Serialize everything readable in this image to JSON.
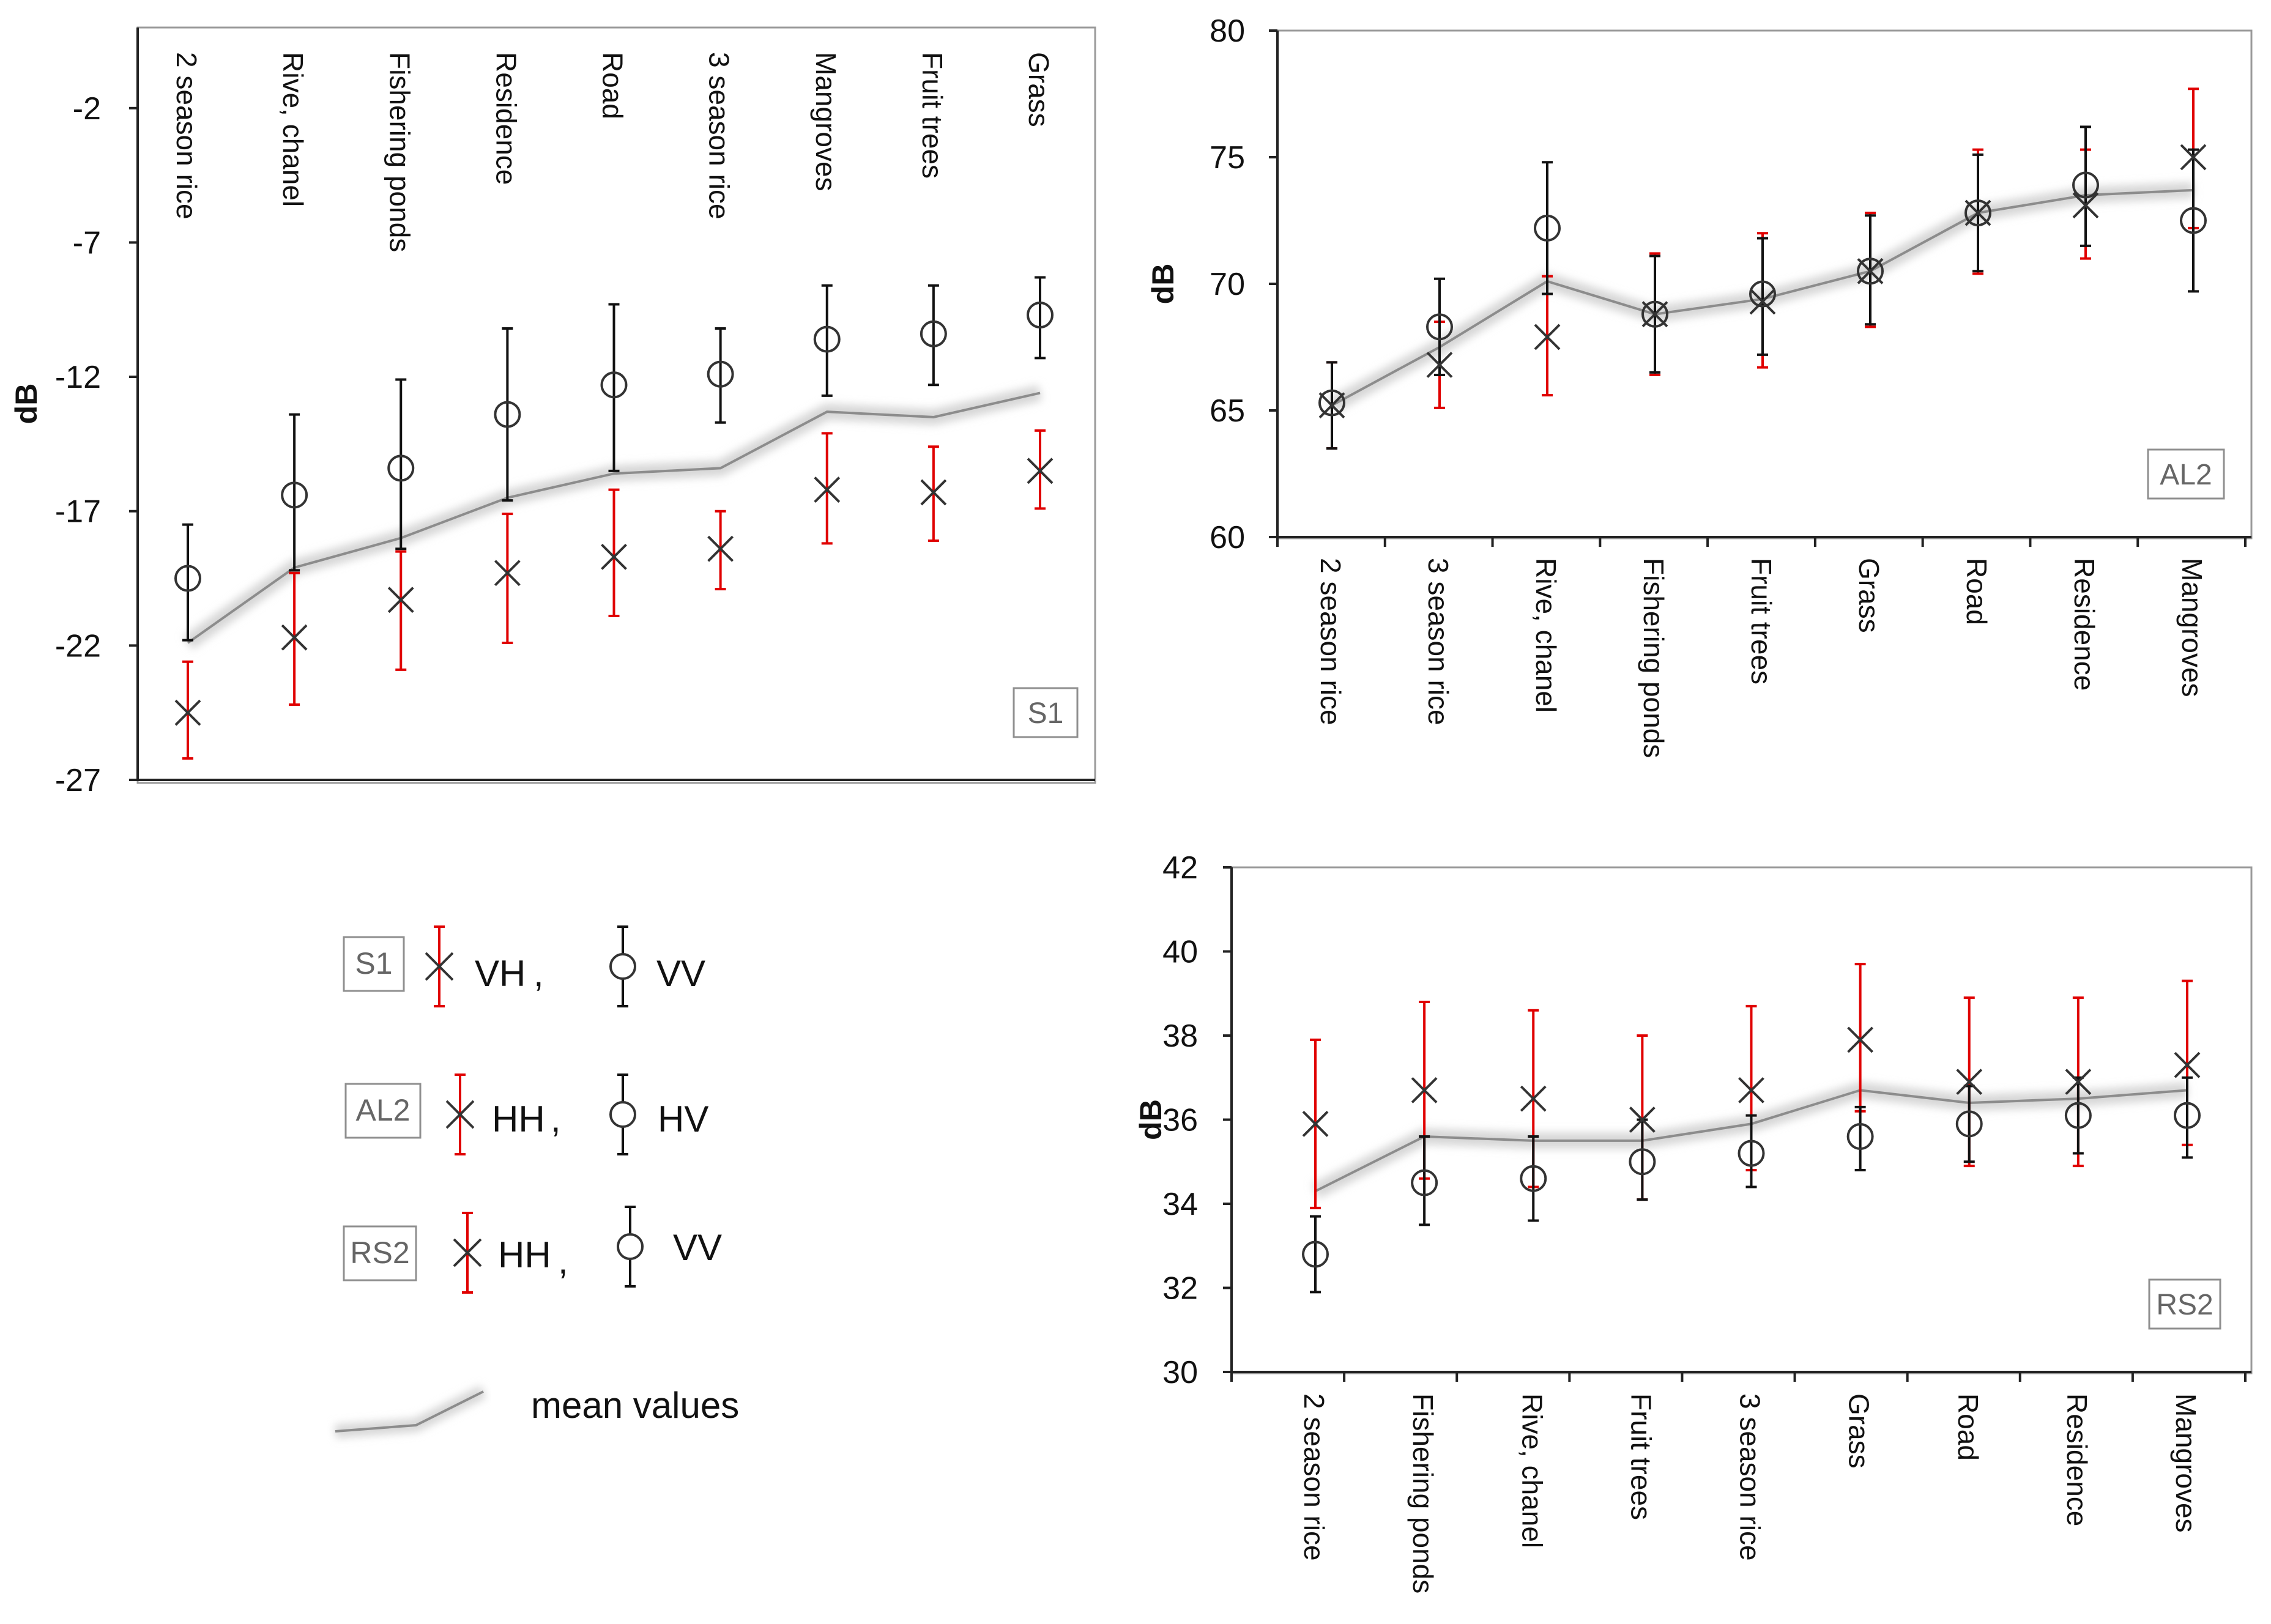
{
  "chart_data": [
    {
      "id": "s1",
      "type": "scatter",
      "title": "",
      "badge": "S1",
      "ylabel": "dB",
      "ylim": [
        -27,
        1
      ],
      "yticks": [
        -2,
        -7,
        -12,
        -17,
        -22,
        -27
      ],
      "category_position": "top",
      "categories": [
        "2 season rice",
        "Rive, chanel",
        "Fishering ponds",
        "Residence",
        "Road",
        "3 season rice",
        "Mangroves",
        "Fruit trees",
        "Grass"
      ],
      "series": [
        {
          "name": "VH",
          "marker": "cross",
          "error_color": "#e00000",
          "values": [
            -24.5,
            -21.7,
            -20.3,
            -19.3,
            -18.7,
            -18.4,
            -16.2,
            -16.3,
            -15.5
          ],
          "err_low": [
            -26.2,
            -24.2,
            -22.9,
            -21.9,
            -20.9,
            -19.9,
            -18.2,
            -18.1,
            -16.9
          ],
          "err_high": [
            -22.6,
            -19.3,
            -18.5,
            -17.1,
            -16.2,
            -17.0,
            -14.1,
            -14.6,
            -14.0
          ]
        },
        {
          "name": "VV",
          "marker": "circle",
          "error_color": "#111111",
          "values": [
            -19.5,
            -16.4,
            -15.4,
            -13.4,
            -12.3,
            -11.9,
            -10.6,
            -10.4,
            -9.7
          ],
          "err_low": [
            -21.8,
            -19.2,
            -18.4,
            -16.6,
            -15.5,
            -13.7,
            -12.7,
            -12.3,
            -11.3
          ],
          "err_high": [
            -17.5,
            -13.4,
            -12.1,
            -10.2,
            -9.3,
            -10.2,
            -8.6,
            -8.6,
            -8.3
          ]
        },
        {
          "name": "mean",
          "marker": "line",
          "values": [
            -21.9,
            -19.1,
            -18.0,
            -16.5,
            -15.6,
            -15.4,
            -13.3,
            -13.5,
            -12.6
          ]
        }
      ]
    },
    {
      "id": "al2",
      "type": "scatter",
      "title": "",
      "badge": "AL2",
      "ylabel": "dB",
      "ylim": [
        60,
        80
      ],
      "yticks": [
        80,
        75,
        70,
        65,
        60
      ],
      "category_position": "bottom",
      "categories": [
        "2 season rice",
        "3 season rice",
        "Rive, chanel",
        "Fishering ponds",
        "Fruit trees",
        "Grass",
        "Road",
        "Residence",
        "Mangroves"
      ],
      "series": [
        {
          "name": "HH",
          "marker": "cross",
          "error_color": "#e00000",
          "values": [
            65.2,
            66.8,
            67.9,
            68.8,
            69.3,
            70.5,
            72.8,
            73.1,
            75.0
          ],
          "err_low": [
            63.5,
            65.1,
            65.6,
            66.4,
            66.7,
            68.3,
            70.4,
            71.0,
            72.2
          ],
          "err_high": [
            66.9,
            68.5,
            70.3,
            71.2,
            72.0,
            72.8,
            75.3,
            75.3,
            77.7
          ]
        },
        {
          "name": "HV",
          "marker": "circle",
          "error_color": "#111111",
          "values": [
            65.3,
            68.3,
            72.2,
            68.8,
            69.6,
            70.5,
            72.8,
            73.9,
            72.5
          ],
          "err_low": [
            63.5,
            66.4,
            69.6,
            66.5,
            67.2,
            68.4,
            70.5,
            71.5,
            69.7
          ],
          "err_high": [
            66.9,
            70.2,
            74.8,
            71.1,
            71.8,
            72.7,
            75.1,
            76.2,
            75.3
          ]
        },
        {
          "name": "mean",
          "marker": "line",
          "values": [
            65.2,
            67.5,
            70.1,
            68.8,
            69.4,
            70.5,
            72.8,
            73.5,
            73.7
          ]
        }
      ]
    },
    {
      "id": "rs2",
      "type": "scatter",
      "title": "",
      "badge": "RS2",
      "ylabel": "dB",
      "ylim": [
        30,
        42
      ],
      "yticks": [
        42,
        40,
        38,
        36,
        34,
        32,
        30
      ],
      "category_position": "bottom",
      "categories": [
        "2 season rice",
        "Fishering ponds",
        "Rive, chanel",
        "Fruit trees",
        "3 season rice",
        "Grass",
        "Road",
        "Residence",
        "Mangroves"
      ],
      "series": [
        {
          "name": "HH",
          "marker": "cross",
          "error_color": "#e00000",
          "values": [
            35.9,
            36.7,
            36.5,
            36.0,
            36.7,
            37.9,
            36.9,
            36.9,
            37.3
          ],
          "err_low": [
            33.9,
            34.6,
            34.4,
            34.1,
            34.8,
            36.2,
            34.9,
            34.9,
            35.4
          ],
          "err_high": [
            37.9,
            38.8,
            38.6,
            38.0,
            38.7,
            39.7,
            38.9,
            38.9,
            39.3
          ]
        },
        {
          "name": "VV",
          "marker": "circle",
          "error_color": "#111111",
          "values": [
            32.8,
            34.5,
            34.6,
            35.0,
            35.2,
            35.6,
            35.9,
            36.1,
            36.1
          ],
          "err_low": [
            31.9,
            33.5,
            33.6,
            34.1,
            34.4,
            34.8,
            35.0,
            35.2,
            35.1
          ],
          "err_high": [
            33.7,
            35.6,
            35.6,
            36.0,
            36.1,
            36.3,
            36.8,
            37.0,
            37.0
          ]
        },
        {
          "name": "mean",
          "marker": "line",
          "values": [
            34.3,
            35.6,
            35.5,
            35.5,
            35.9,
            36.7,
            36.4,
            36.5,
            36.7
          ]
        }
      ]
    }
  ],
  "legend": {
    "rows": [
      {
        "badge": "S1",
        "first": "VH",
        "sep": ",",
        "second": "VV"
      },
      {
        "badge": "AL2",
        "first": "HH",
        "sep": ",",
        "second": "HV"
      },
      {
        "badge": "RS2",
        "first": "HH",
        "sep": ",",
        "second": "VV"
      }
    ],
    "mean_label": "mean values"
  },
  "colors": {
    "error_red": "#e00000",
    "error_black": "#111111",
    "mean_line": "#8c8c8c",
    "mean_glow": "#d6d6d6",
    "badge_border": "#8f8f8f",
    "frame": "#9a9a9a"
  }
}
